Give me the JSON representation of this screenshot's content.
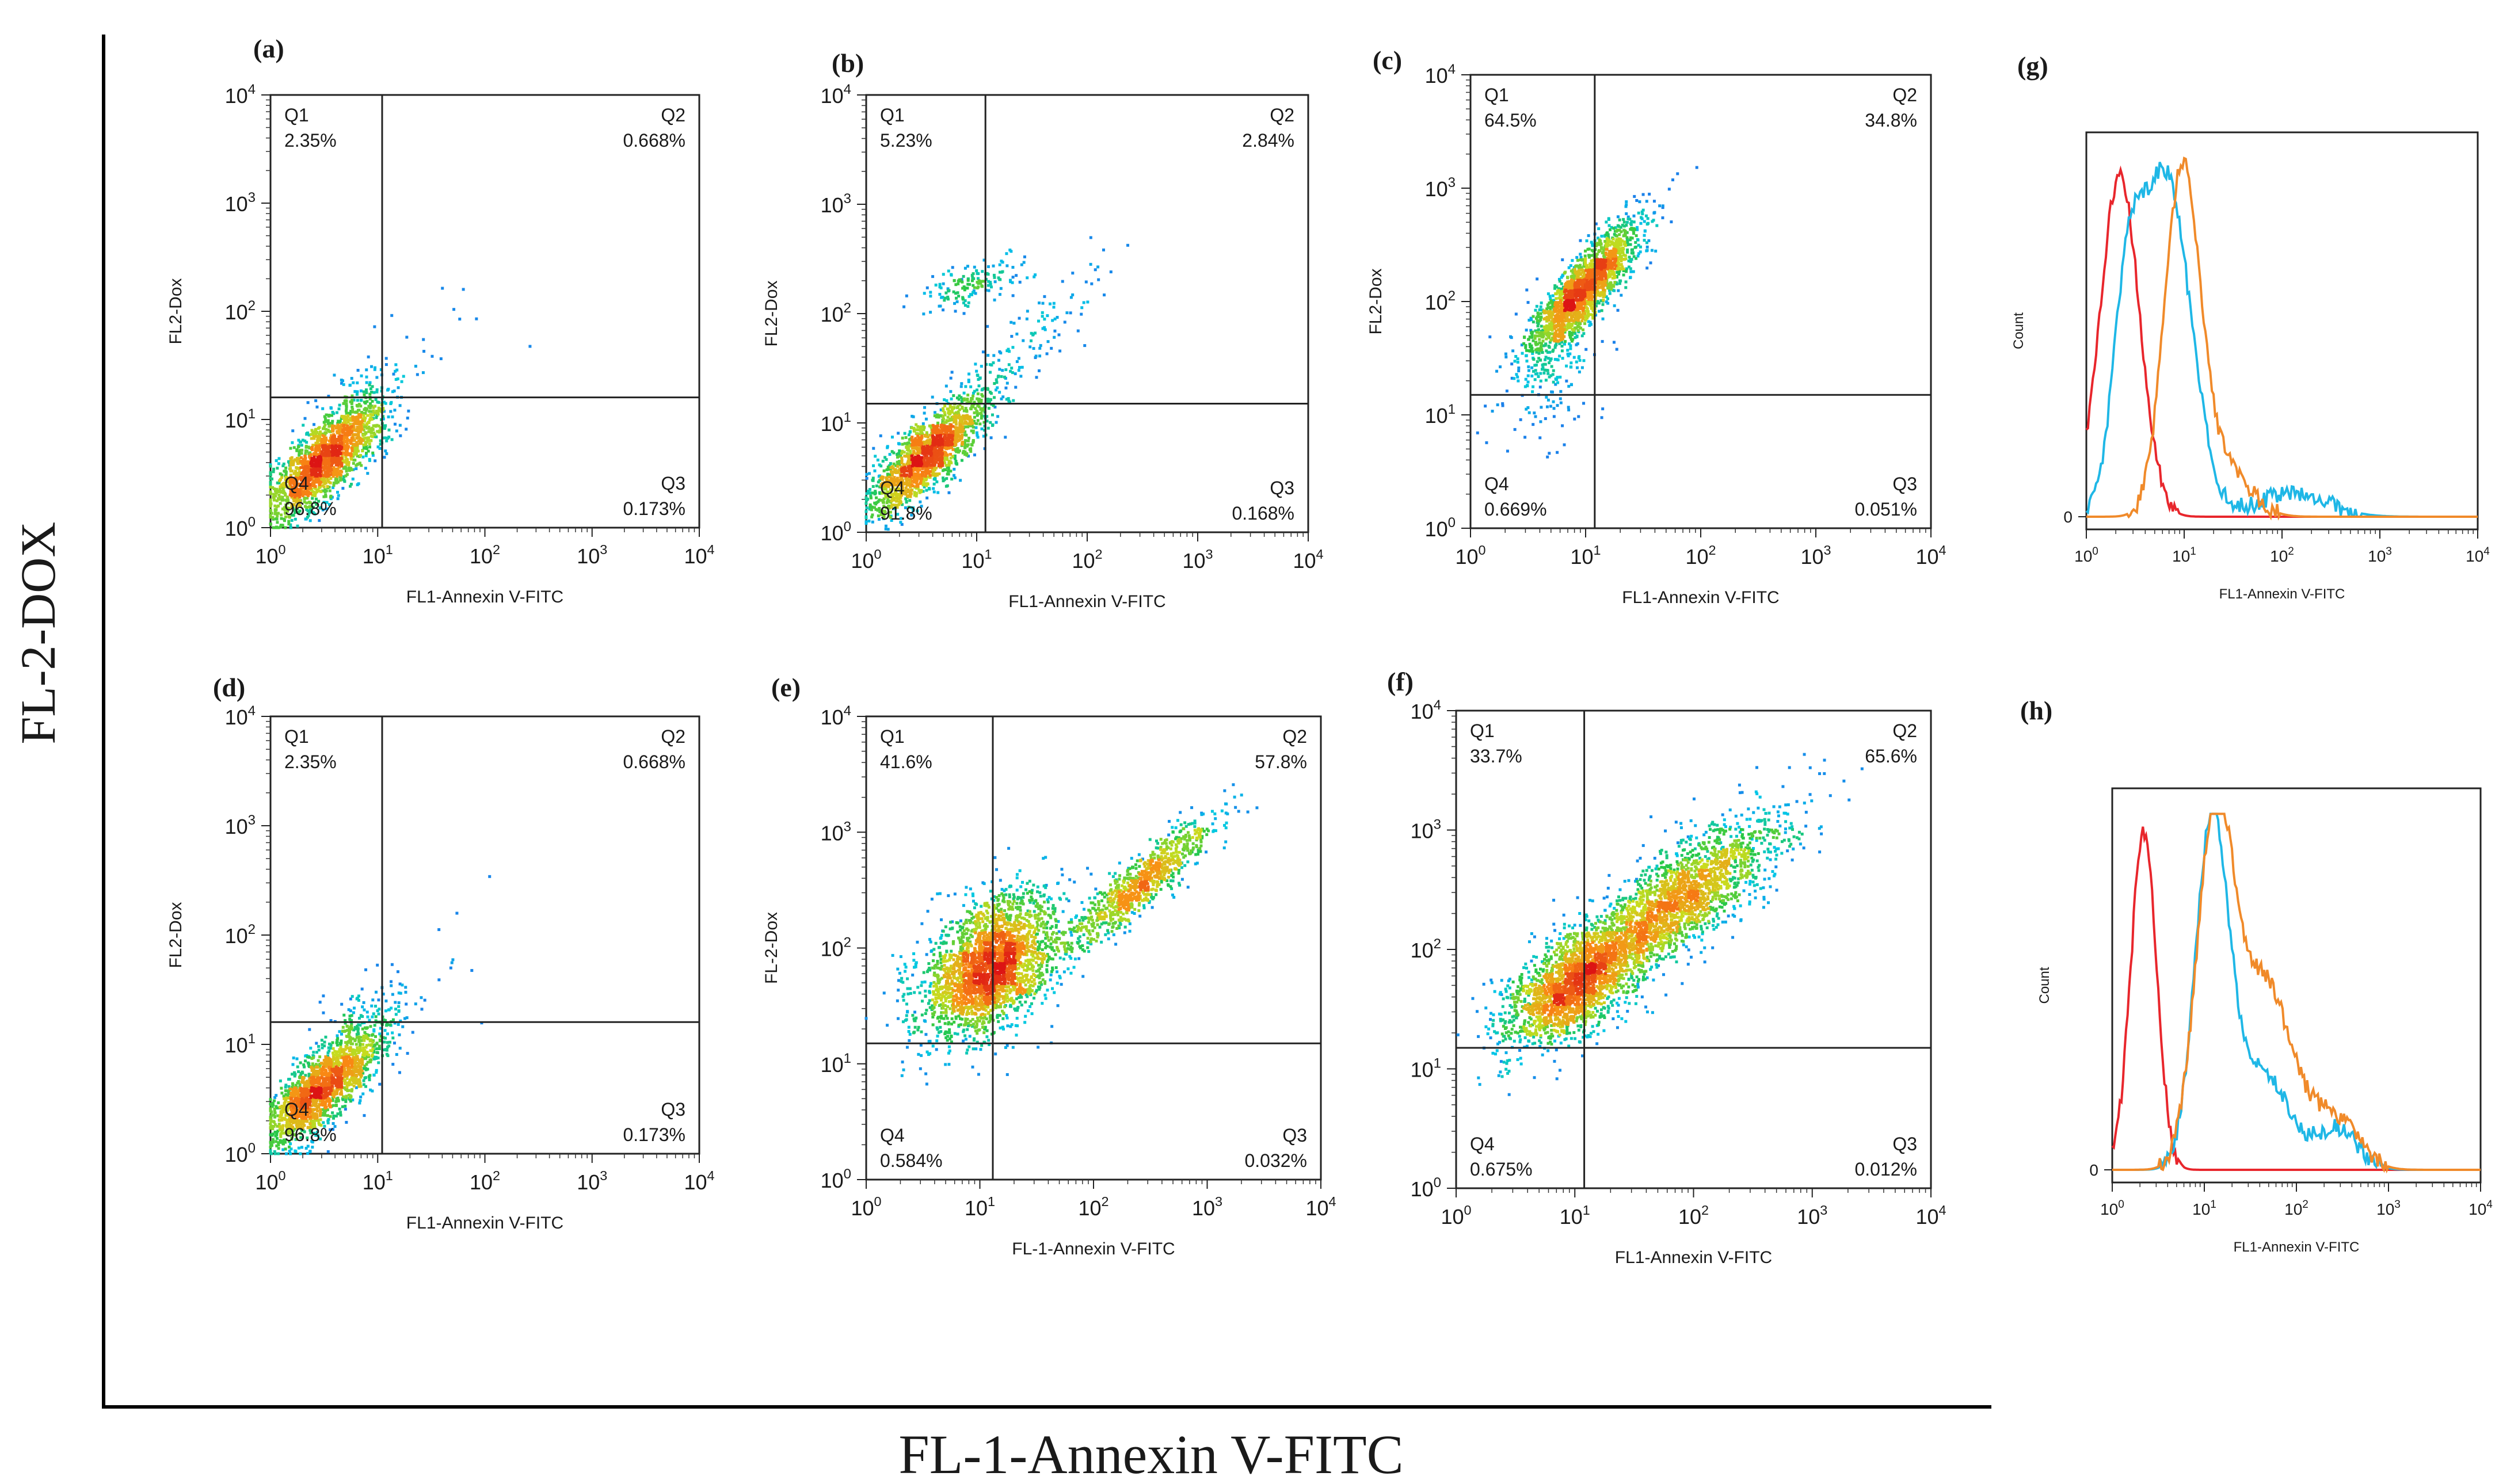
{
  "figure": {
    "x_axis_label": "FL-1-Annexin V-FITC",
    "y_axis_label": "FL-2-DOX"
  },
  "chart_data": [
    {
      "panel": "(a)",
      "type": "scatter",
      "xlabel": "FL1-Annexin V-FITC",
      "ylabel": "FL2-Dox",
      "xscale": "log",
      "yscale": "log",
      "xlim": [
        1,
        10000
      ],
      "ylim": [
        1,
        10000
      ],
      "gate": {
        "x": 11,
        "y": 16
      },
      "quadrants": [
        {
          "name": "Q1",
          "percent": "2.35%"
        },
        {
          "name": "Q2",
          "percent": "0.668%"
        },
        {
          "name": "Q3",
          "percent": "0.173%"
        },
        {
          "name": "Q4",
          "percent": "96.8%"
        }
      ],
      "populations": [
        {
          "center": [
            3.0,
            4.0
          ],
          "spread": [
            0.28,
            0.28
          ],
          "rho": 0.78,
          "count": 1800
        },
        {
          "center": [
            7.0,
            12.0
          ],
          "spread": [
            0.2,
            0.25
          ],
          "rho": 0.3,
          "count": 140
        },
        {
          "center": [
            22.0,
            40.0
          ],
          "spread": [
            0.35,
            0.35
          ],
          "rho": 0.4,
          "count": 18
        }
      ]
    },
    {
      "panel": "(b)",
      "type": "scatter",
      "xlabel": "FL1-Annexin V-FITC",
      "ylabel": "FL2-Dox",
      "xscale": "log",
      "yscale": "log",
      "xlim": [
        1,
        10000
      ],
      "ylim": [
        1,
        10000
      ],
      "gate": {
        "x": 12,
        "y": 15
      },
      "quadrants": [
        {
          "name": "Q1",
          "percent": "5.23%"
        },
        {
          "name": "Q2",
          "percent": "2.84%"
        },
        {
          "name": "Q3",
          "percent": "0.168%"
        },
        {
          "name": "Q4",
          "percent": "91.8%"
        }
      ],
      "populations": [
        {
          "center": [
            3.5,
            5.0
          ],
          "spread": [
            0.28,
            0.28
          ],
          "rho": 0.82,
          "count": 1700
        },
        {
          "center": [
            9.0,
            180.0
          ],
          "spread": [
            0.22,
            0.12
          ],
          "rho": 0.55,
          "count": 150
        },
        {
          "center": [
            30.0,
            55.0
          ],
          "spread": [
            0.35,
            0.35
          ],
          "rho": 0.85,
          "count": 120
        }
      ]
    },
    {
      "panel": "(c)",
      "type": "scatter",
      "xlabel": "FL1-Annexin V-FITC",
      "ylabel": "FL2-Dox",
      "xscale": "log",
      "yscale": "log",
      "xlim": [
        1,
        10000
      ],
      "ylim": [
        1,
        10000
      ],
      "gate": {
        "x": 12,
        "y": 15
      },
      "quadrants": [
        {
          "name": "Q1",
          "percent": "64.5%"
        },
        {
          "name": "Q2",
          "percent": "34.8%"
        },
        {
          "name": "Q3",
          "percent": "0.051%"
        },
        {
          "name": "Q4",
          "percent": "0.669%"
        }
      ],
      "populations": [
        {
          "center": [
            10.0,
            130.0
          ],
          "spread": [
            0.24,
            0.3
          ],
          "rho": 0.85,
          "count": 1900
        },
        {
          "center": [
            5.0,
            25.0
          ],
          "spread": [
            0.2,
            0.35
          ],
          "rho": 0.3,
          "count": 150
        }
      ]
    },
    {
      "panel": "(d)",
      "type": "scatter",
      "xlabel": "FL1-Annexin V-FITC",
      "ylabel": "FL2-Dox",
      "xscale": "log",
      "yscale": "log",
      "xlim": [
        1,
        10000
      ],
      "ylim": [
        1,
        10000
      ],
      "gate": {
        "x": 11,
        "y": 16
      },
      "quadrants": [
        {
          "name": "Q1",
          "percent": "2.35%"
        },
        {
          "name": "Q2",
          "percent": "0.668%"
        },
        {
          "name": "Q3",
          "percent": "0.173%"
        },
        {
          "name": "Q4",
          "percent": "96.8%"
        }
      ],
      "populations": [
        {
          "center": [
            3.0,
            4.0
          ],
          "spread": [
            0.28,
            0.28
          ],
          "rho": 0.78,
          "count": 1800
        },
        {
          "center": [
            7.0,
            12.0
          ],
          "spread": [
            0.2,
            0.25
          ],
          "rho": 0.3,
          "count": 140
        },
        {
          "center": [
            22.0,
            40.0
          ],
          "spread": [
            0.35,
            0.35
          ],
          "rho": 0.4,
          "count": 18
        }
      ]
    },
    {
      "panel": "(e)",
      "type": "scatter",
      "xlabel": "FL-1-Annexin V-FITC",
      "ylabel": "FL-2-Dox",
      "xscale": "log",
      "yscale": "log",
      "xlim": [
        1,
        10000
      ],
      "ylim": [
        1,
        10000
      ],
      "gate": {
        "x": 13,
        "y": 15
      },
      "quadrants": [
        {
          "name": "Q1",
          "percent": "41.6%"
        },
        {
          "name": "Q2",
          "percent": "57.8%"
        },
        {
          "name": "Q3",
          "percent": "0.032%"
        },
        {
          "name": "Q4",
          "percent": "0.584%"
        }
      ],
      "populations": [
        {
          "center": [
            12.0,
            70.0
          ],
          "spread": [
            0.3,
            0.3
          ],
          "rho": 0.45,
          "count": 2600
        },
        {
          "center": [
            250.0,
            350.0
          ],
          "spread": [
            0.32,
            0.28
          ],
          "rho": 0.9,
          "count": 900
        }
      ]
    },
    {
      "panel": "(f)",
      "type": "scatter",
      "xlabel": "FL1-Annexin V-FITC",
      "ylabel": "",
      "xscale": "log",
      "yscale": "log",
      "xlim": [
        1,
        10000
      ],
      "ylim": [
        1,
        10000
      ],
      "gate": {
        "x": 12,
        "y": 15
      },
      "quadrants": [
        {
          "name": "Q1",
          "percent": "33.7%"
        },
        {
          "name": "Q2",
          "percent": "65.6%"
        },
        {
          "name": "Q3",
          "percent": "0.012%"
        },
        {
          "name": "Q4",
          "percent": "0.675%"
        }
      ],
      "populations": [
        {
          "center": [
            10.0,
            50.0
          ],
          "spread": [
            0.3,
            0.25
          ],
          "rho": 0.6,
          "count": 2000
        },
        {
          "center": [
            70.0,
            250.0
          ],
          "spread": [
            0.45,
            0.35
          ],
          "rho": 0.8,
          "count": 2200
        }
      ]
    },
    {
      "panel": "(g)",
      "type": "line",
      "xlabel": "FL1-Annexin V-FITC",
      "ylabel": "Count",
      "xscale": "log",
      "xlim": [
        1,
        10000
      ],
      "y_tick": "0",
      "series": [
        {
          "color": "#e8262c",
          "peaks": [
            {
              "center": 2.2,
              "width": 0.2,
              "height": 1.0
            }
          ]
        },
        {
          "color": "#1fb7e6",
          "peaks": [
            {
              "center": 6.5,
              "width": 0.25,
              "height": 1.0
            },
            {
              "center": 2.6,
              "width": 0.15,
              "height": 0.55
            },
            {
              "center": 130,
              "width": 0.35,
              "height": 0.07
            }
          ]
        },
        {
          "color": "#f08a2a",
          "peaks": [
            {
              "center": 9.5,
              "width": 0.18,
              "height": 1.0
            },
            {
              "center": 25,
              "width": 0.25,
              "height": 0.15
            }
          ]
        }
      ]
    },
    {
      "panel": "(h)",
      "type": "line",
      "xlabel": "FL1-Annexin V-FITC",
      "ylabel": "Count",
      "xscale": "log",
      "xlim": [
        1,
        10000
      ],
      "y_tick": "0",
      "series": [
        {
          "color": "#e8262c",
          "peaks": [
            {
              "center": 2.2,
              "width": 0.14,
              "height": 1.0
            }
          ]
        },
        {
          "color": "#1fb7e6",
          "peaks": [
            {
              "center": 12,
              "width": 0.18,
              "height": 1.0
            },
            {
              "center": 40,
              "width": 0.3,
              "height": 0.3
            },
            {
              "center": 280,
              "width": 0.22,
              "height": 0.12
            }
          ]
        },
        {
          "color": "#f08a2a",
          "peaks": [
            {
              "center": 13,
              "width": 0.2,
              "height": 1.0
            },
            {
              "center": 45,
              "width": 0.3,
              "height": 0.55
            },
            {
              "center": 260,
              "width": 0.25,
              "height": 0.15
            }
          ]
        }
      ]
    }
  ]
}
